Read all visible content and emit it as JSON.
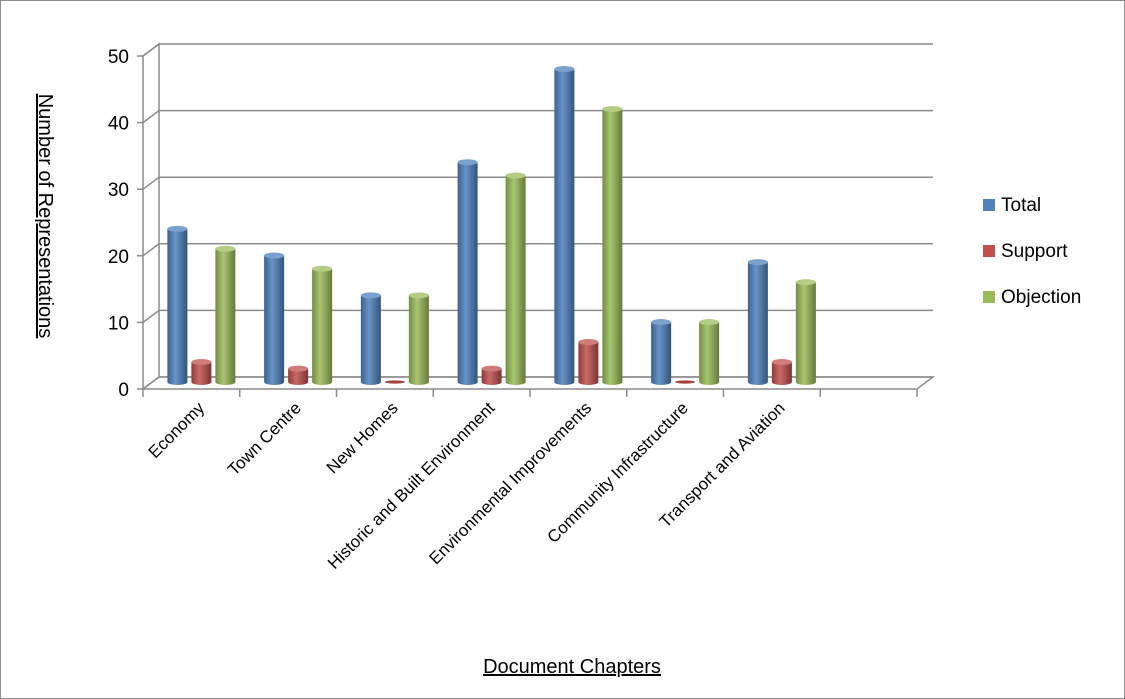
{
  "chart_data": {
    "type": "bar",
    "title": "",
    "xlabel": "Document Chapters",
    "ylabel": "Number of Representations",
    "ylim": [
      0,
      50
    ],
    "yticks": [
      0,
      10,
      20,
      30,
      40,
      50
    ],
    "grid": true,
    "legend_position": "right",
    "categories": [
      "Economy",
      "Town Centre",
      "New Homes",
      "Historic and Built Environment",
      "Environmental Improvements",
      "Community Infrastructure",
      "Transport and Aviation",
      ""
    ],
    "series": [
      {
        "name": "Total",
        "color": "#4f81bd",
        "values": [
          23,
          19,
          13,
          33,
          47,
          9,
          18,
          null
        ]
      },
      {
        "name": "Support",
        "color": "#c0504d",
        "values": [
          3,
          2,
          0,
          2,
          6,
          0,
          3,
          null
        ]
      },
      {
        "name": "Objection",
        "color": "#9bbb59",
        "values": [
          20,
          17,
          13,
          31,
          41,
          9,
          15,
          null
        ]
      }
    ]
  }
}
